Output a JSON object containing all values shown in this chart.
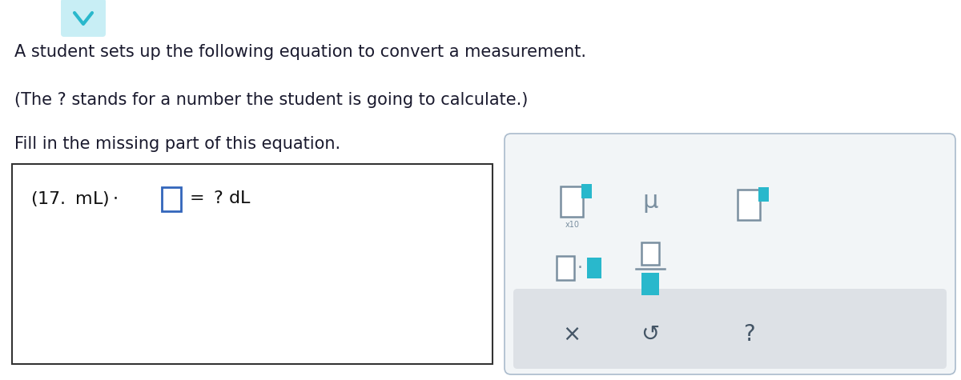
{
  "bg_color": "#ffffff",
  "text_lines": [
    "A student sets up the following equation to convert a measurement.",
    "(The ? stands for a number the student is going to calculate.)",
    "Fill in the missing part of this equation."
  ],
  "text_color": "#1a1a2e",
  "text_fontsize": 15.0,
  "teal": "#29b8cc",
  "teal_light": "#c8eef5",
  "gray_sym": "#7a8fa0",
  "dark_sym": "#445566"
}
